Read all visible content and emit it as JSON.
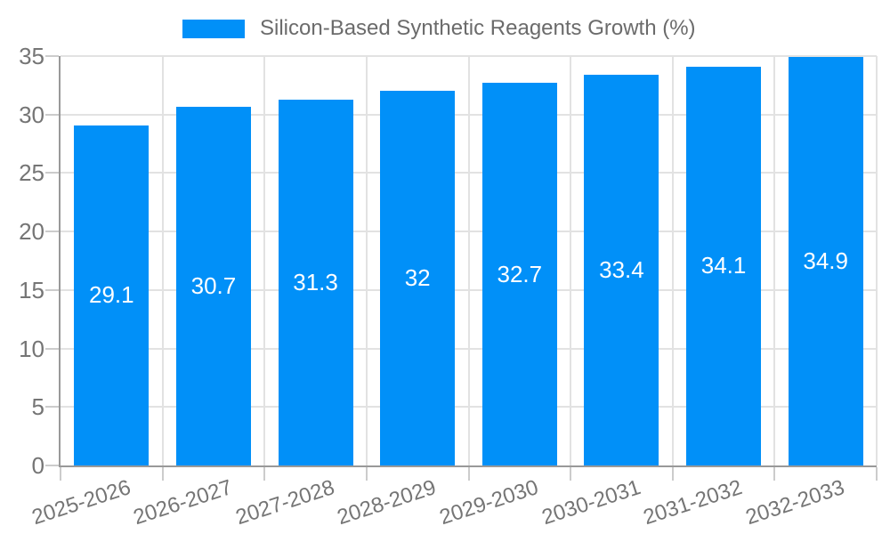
{
  "legend": {
    "label": "Silicon-Based Synthetic Reagents Growth (%)"
  },
  "chart_data": {
    "type": "bar",
    "title": "Silicon-Based Synthetic Reagents Growth (%)",
    "categories": [
      "2025-2026",
      "2026-2027",
      "2027-2028",
      "2028-2029",
      "2029-2030",
      "2030-2031",
      "2031-2032",
      "2032-2033"
    ],
    "values": [
      29.1,
      30.7,
      31.3,
      32,
      32.7,
      33.4,
      34.1,
      34.9
    ],
    "bar_labels": [
      "29.1",
      "30.7",
      "31.3",
      "32",
      "32.7",
      "33.4",
      "34.1",
      "34.9"
    ],
    "xlabel": "",
    "ylabel": "",
    "ylim": [
      0,
      35
    ],
    "ytick_step": 5,
    "ytick_labels": [
      "0",
      "5",
      "10",
      "15",
      "20",
      "25",
      "30",
      "35"
    ],
    "grid": true,
    "legend_position": "top-center",
    "colors": {
      "bar": "#0190F8",
      "bar_label": "#FFFFFF",
      "grid_line": "#E2E2E2",
      "axis_line": "#999999",
      "tick_mark": "#CCCCCC",
      "tick_text": "#757575",
      "legend_text": "#6B6B6B",
      "background": "#FFFFFF"
    }
  }
}
